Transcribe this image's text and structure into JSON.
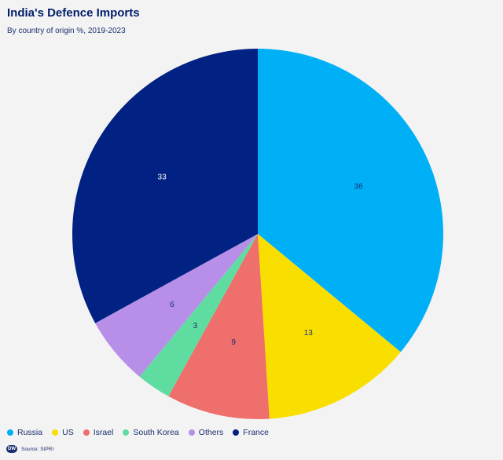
{
  "header": {
    "title": "India's Defence Imports",
    "subtitle": "By country of origin %, 2019-2023"
  },
  "footer": {
    "logo_text": "DW",
    "source": "Source: SIPRI"
  },
  "chart_data": {
    "type": "pie",
    "title": "India's Defence Imports",
    "subtitle": "By country of origin %, 2019-2023",
    "start_angle_deg": 0,
    "direction": "clockwise",
    "slices": [
      {
        "name": "Russia",
        "value": 36,
        "color": "#00b0f7",
        "label_color": "#1a2f6f"
      },
      {
        "name": "US",
        "value": 13,
        "color": "#f9df00",
        "label_color": "#1a2f6f"
      },
      {
        "name": "Israel",
        "value": 9,
        "color": "#ef6f6c",
        "label_color": "#1a2f6f"
      },
      {
        "name": "South Korea",
        "value": 3,
        "color": "#5fdda1",
        "label_color": "#1a2f6f"
      },
      {
        "name": "Others",
        "value": 6,
        "color": "#b78fe9",
        "label_color": "#1a2f6f"
      },
      {
        "name": "France",
        "value": 33,
        "color": "#012282",
        "label_color": "#ffffff"
      }
    ],
    "legend_position": "bottom-left"
  }
}
